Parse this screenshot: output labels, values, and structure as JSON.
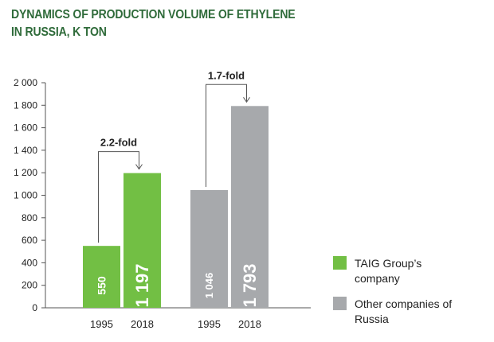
{
  "title_lines": [
    "DYNAMICS OF PRODUCTION VOLUME OF ETHYLENE",
    "IN RUSSIA, K TON"
  ],
  "colors": {
    "title": "#2f6b3a",
    "taig": "#72bf44",
    "other": "#a7a9ac"
  },
  "chart_data": {
    "type": "bar",
    "title": "DYNAMICS OF PRODUCTION VOLUME OF ETHYLENE IN RUSSIA, K TON",
    "xlabel": "",
    "ylabel": "",
    "ylim": [
      0,
      2000
    ],
    "yticks": [
      0,
      200,
      400,
      600,
      800,
      1000,
      1200,
      1400,
      1600,
      1800,
      2000
    ],
    "ytick_labels": [
      "0",
      "200",
      "400",
      "600",
      "800",
      "1 000",
      "1 200",
      "1 400",
      "1 600",
      "1 800",
      "2 000"
    ],
    "grid": false,
    "legend_position": "right",
    "groups": [
      {
        "series": "TAIG Group’s company",
        "years": [
          "1995",
          "2018"
        ],
        "values": [
          550,
          1197
        ],
        "value_labels": [
          "550",
          "1 197"
        ],
        "growth_label": "2.2-fold"
      },
      {
        "series": "Other companies of Russia",
        "years": [
          "1995",
          "2018"
        ],
        "values": [
          1046,
          1793
        ],
        "value_labels": [
          "1 046",
          "1 793"
        ],
        "growth_label": "1.7-fold"
      }
    ]
  },
  "legend": [
    {
      "label": "TAIG Group’s company",
      "color": "#72bf44"
    },
    {
      "label": "Other companies of Russia",
      "color": "#a7a9ac"
    }
  ]
}
